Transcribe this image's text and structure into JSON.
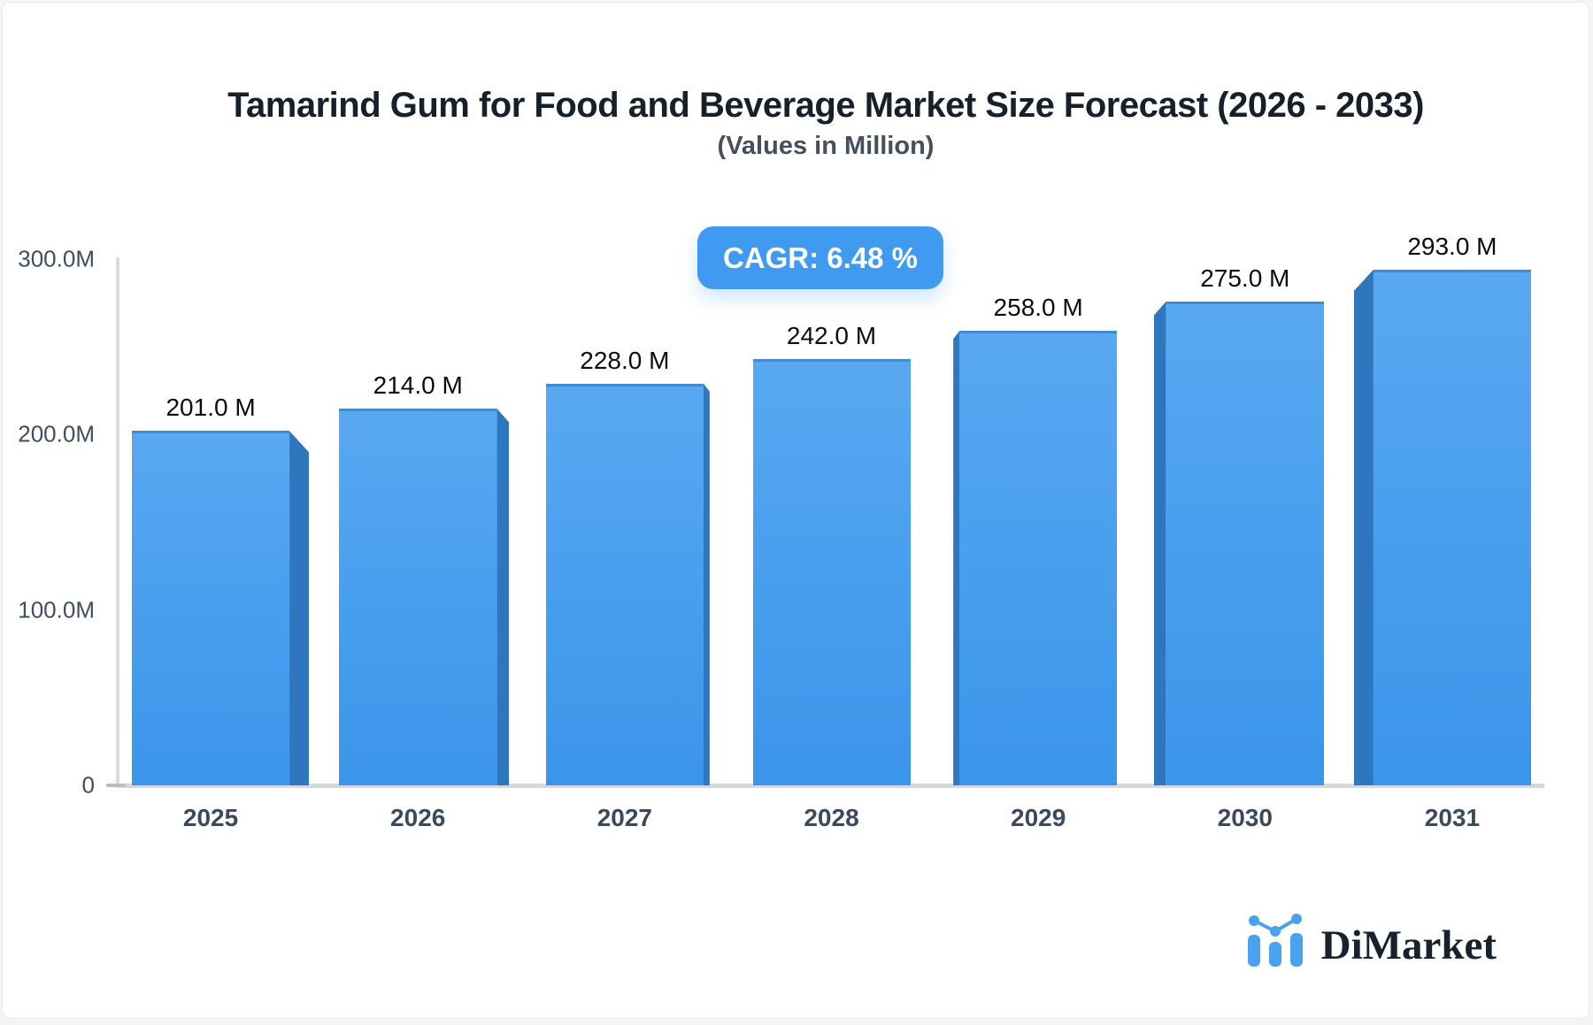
{
  "header": {
    "title": "Tamarind Gum for Food and Beverage Market Size Forecast (2026 - 2033)",
    "subtitle": "(Values in Million)"
  },
  "badge": {
    "label": "CAGR: 6.48 %",
    "color": "#3f9af0",
    "text_color": "#ffffff"
  },
  "chart_data": {
    "type": "bar",
    "title": "Tamarind Gum for Food and Beverage Market Size Forecast (2026 - 2033)",
    "subtitle": "(Values in Million)",
    "categories": [
      "2025",
      "2026",
      "2027",
      "2028",
      "2029",
      "2030",
      "2031"
    ],
    "values": [
      201,
      214,
      228,
      242,
      258,
      275,
      293
    ],
    "value_labels": [
      "201.0 M",
      "214.0 M",
      "228.0 M",
      "242.0 M",
      "258.0 M",
      "275.0 M",
      "293.0 M"
    ],
    "xlabel": "",
    "ylabel": "",
    "ylim": [
      0,
      300
    ],
    "yticks": [
      {
        "value": 300,
        "label": "300.0M"
      },
      {
        "value": 200,
        "label": "200.0M"
      },
      {
        "value": 100,
        "label": "100.0M"
      },
      {
        "value": 0,
        "label": "0"
      }
    ],
    "grid": false,
    "legend": false,
    "annotation": "CAGR: 6.48 %",
    "bar_color_top": "#59a9f1",
    "bar_color_bottom": "#3b95ea",
    "bar_side_color": "#2e76be",
    "style": "3d-extruded, perspective vanishing toward center bar"
  },
  "logo": {
    "text": "DiMarket",
    "accent_color": "#4aa2ef",
    "text_color": "#18212e"
  }
}
